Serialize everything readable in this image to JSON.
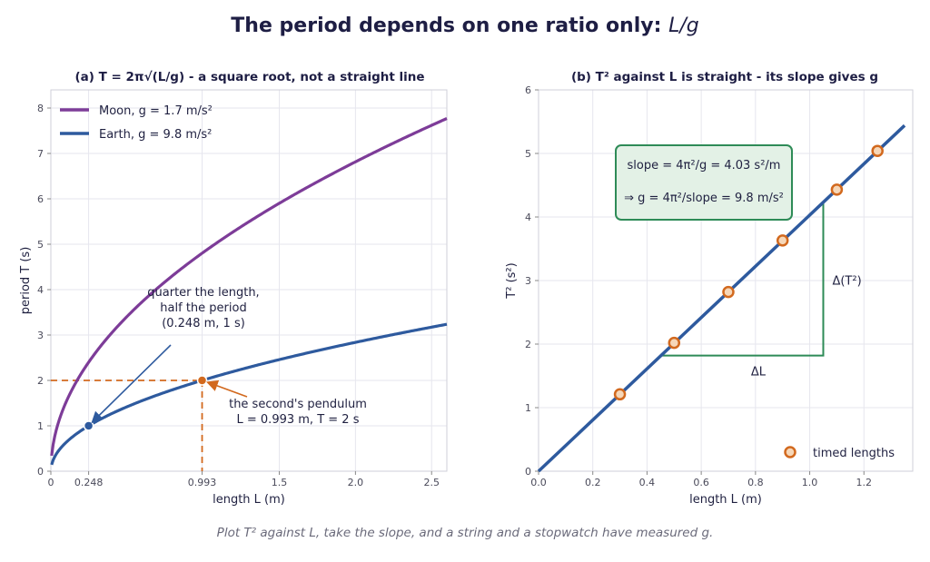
{
  "title": {
    "main": "The period depends on one ratio only: ",
    "ratio": "L/g"
  },
  "caption": "Plot T² against L, take the slope, and a string and a stopwatch have measured g.",
  "colors": {
    "moon": "#7d3c98",
    "earth": "#2e5a9e",
    "orange": "#d2691e",
    "green": "#2e8b57",
    "box_fill": "#e3f1e6"
  },
  "chart_data": [
    {
      "type": "line",
      "panel": "a",
      "title": {
        "prefix": "(a)  T = 2π√(L/g)",
        "suffix": " - a square root, not a straight line"
      },
      "xlabel": "length L (m)",
      "ylabel": "period T (s)",
      "xlim": [
        0,
        2.6
      ],
      "ylim": [
        0,
        8.4
      ],
      "xticks": [
        0,
        0.248,
        0.993,
        1.5,
        2.0,
        2.5
      ],
      "xtick_labels": [
        "0",
        "0.248",
        "0.993",
        "1.5",
        "2.0",
        "2.5"
      ],
      "yticks": [
        0,
        1,
        2,
        3,
        4,
        5,
        6,
        7,
        8
      ],
      "ytick_labels": [
        "0",
        "1",
        "2",
        "3",
        "4",
        "5",
        "6",
        "7",
        "8"
      ],
      "grid": true,
      "legend_position": "top-left",
      "series": [
        {
          "name": "Moon,  g = 1.7 m/s²",
          "formula": "T = 2π√(L/g)",
          "g": 1.7,
          "color": "#7d3c98",
          "x": [
            0.01,
            0.1,
            0.25,
            0.5,
            0.75,
            1.0,
            1.25,
            1.5,
            1.75,
            2.0,
            2.25,
            2.5,
            2.6
          ],
          "y": [
            0.48,
            1.52,
            2.41,
            3.41,
            4.17,
            4.82,
            5.39,
            5.9,
            6.38,
            6.82,
            7.23,
            7.62,
            7.77
          ]
        },
        {
          "name": "Earth,  g = 9.8 m/s²",
          "formula": "T = 2π√(L/g)",
          "g": 9.8,
          "color": "#2e5a9e",
          "x": [
            0.01,
            0.1,
            0.248,
            0.5,
            0.75,
            0.993,
            1.25,
            1.5,
            1.75,
            2.0,
            2.25,
            2.5,
            2.6
          ],
          "y": [
            0.2,
            0.63,
            1.0,
            1.42,
            1.74,
            2.0,
            2.24,
            2.46,
            2.65,
            2.84,
            3.01,
            3.17,
            3.24
          ]
        }
      ],
      "points": [
        {
          "x": 0.248,
          "y": 1.0,
          "color": "#2e5a9e"
        },
        {
          "x": 0.993,
          "y": 2.0,
          "color": "#d2691e"
        }
      ],
      "annotations": [
        {
          "lines": [
            "quarter the length,",
            "half the period",
            "(0.248 m, 1 s)"
          ],
          "color": "#2e5a9e"
        },
        {
          "lines": [
            "the second's pendulum",
            "L = 0.993 m,  T = 2 s"
          ],
          "color": "#d2691e"
        }
      ]
    },
    {
      "type": "scatter",
      "panel": "b",
      "title": {
        "prefix": "(b)  T² against L is straight - its slope gives g"
      },
      "xlabel": "length L (m)",
      "ylabel": "T² (s²)",
      "xlim": [
        0,
        1.38
      ],
      "ylim": [
        0,
        6
      ],
      "xticks": [
        0,
        0.2,
        0.4,
        0.6,
        0.8,
        1.0,
        1.2
      ],
      "xtick_labels": [
        "0.0",
        "0.2",
        "0.4",
        "0.6",
        "0.8",
        "1.0",
        "1.2"
      ],
      "yticks": [
        0,
        1,
        2,
        3,
        4,
        5,
        6
      ],
      "ytick_labels": [
        "0",
        "1",
        "2",
        "3",
        "4",
        "5",
        "6"
      ],
      "grid": true,
      "legend_position": "bottom-right",
      "fit_line": {
        "x": [
          0,
          1.35
        ],
        "y": [
          0,
          5.44
        ],
        "slope": 4.03,
        "color": "#2e5a9e"
      },
      "series": [
        {
          "name": "timed lengths",
          "color": "#d2691e",
          "x": [
            0.3,
            0.5,
            0.7,
            0.9,
            1.1,
            1.25
          ],
          "y": [
            1.21,
            2.02,
            2.82,
            3.63,
            4.43,
            5.04
          ]
        }
      ],
      "slope_triangle": {
        "x0": 0.45,
        "x1": 1.05,
        "y0": 1.82,
        "y1": 4.23,
        "dx_label": "ΔL",
        "dy_label": "Δ(T²)",
        "color": "#2e8b57"
      },
      "slope_box": {
        "line1": "slope = 4π²/g = 4.03 s²/m",
        "line2": "⇒ g = 4π²/slope = 9.8 m/s²"
      }
    }
  ]
}
